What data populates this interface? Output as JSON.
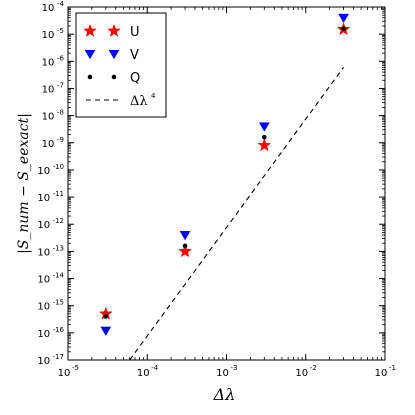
{
  "chart_data": {
    "type": "scatter",
    "xscale": "log",
    "yscale": "log",
    "xlim": [
      1e-05,
      0.1
    ],
    "ylim": [
      1e-17,
      0.0001
    ],
    "grid": false,
    "xlabel": "Δλ",
    "ylabel": "|S_num − S_eexact|",
    "x_ticks": [
      {
        "base": "10",
        "exp": "-5",
        "value": 1e-05
      },
      {
        "base": "10",
        "exp": "-4",
        "value": 0.0001
      },
      {
        "base": "10",
        "exp": "-3",
        "value": 0.001
      },
      {
        "base": "10",
        "exp": "-2",
        "value": 0.01
      },
      {
        "base": "10",
        "exp": "-1",
        "value": 0.1
      }
    ],
    "y_ticks": [
      {
        "base": "10",
        "exp": "-17",
        "value": 1e-17
      },
      {
        "base": "10",
        "exp": "-16",
        "value": 1e-16
      },
      {
        "base": "10",
        "exp": "-15",
        "value": 1e-15
      },
      {
        "base": "10",
        "exp": "-14",
        "value": 1e-14
      },
      {
        "base": "10",
        "exp": "-13",
        "value": 1e-13
      },
      {
        "base": "10",
        "exp": "-12",
        "value": 1e-12
      },
      {
        "base": "10",
        "exp": "-11",
        "value": 1e-11
      },
      {
        "base": "10",
        "exp": "-10",
        "value": 1e-10
      },
      {
        "base": "10",
        "exp": "-9",
        "value": 1e-09
      },
      {
        "base": "10",
        "exp": "-8",
        "value": 1e-08
      },
      {
        "base": "10",
        "exp": "-7",
        "value": 1e-07
      },
      {
        "base": "10",
        "exp": "-6",
        "value": 1e-06
      },
      {
        "base": "10",
        "exp": "-5",
        "value": 1e-05
      },
      {
        "base": "10",
        "exp": "-4",
        "value": 0.0001
      }
    ],
    "legend_position": "top-left",
    "series": [
      {
        "name": "U",
        "marker": "star",
        "color": "#ff0000",
        "x": [
          3e-05,
          0.0003,
          0.003,
          0.03
        ],
        "y": [
          5e-16,
          1e-13,
          8e-10,
          1.5e-05
        ]
      },
      {
        "name": "V",
        "marker": "triangle-down",
        "color": "#0000ff",
        "x": [
          3e-05,
          0.0003,
          0.003,
          0.03
        ],
        "y": [
          1.2e-16,
          4e-13,
          4e-09,
          4e-05
        ]
      },
      {
        "name": "Q",
        "marker": "dot",
        "color": "#000000",
        "x": [
          3e-05,
          0.0003,
          0.003,
          0.03
        ],
        "y": [
          4e-16,
          1.6e-13,
          1.6e-09,
          1.6e-05
        ]
      },
      {
        "name": "Δλ",
        "name_exp": "4",
        "marker": "dashed-line",
        "color": "#000000",
        "x": [
          6e-05,
          0.03
        ],
        "y": [
          1e-17,
          6e-07
        ]
      }
    ]
  }
}
